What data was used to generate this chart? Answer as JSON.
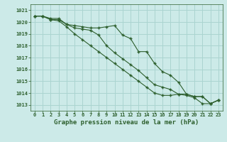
{
  "title": "Graphe pression niveau de la mer (hPa)",
  "bg_color": "#cceae8",
  "grid_color": "#aad4d0",
  "line_color": "#2d5f2d",
  "x_labels": [
    "0",
    "1",
    "2",
    "3",
    "4",
    "5",
    "6",
    "7",
    "8",
    "9",
    "10",
    "11",
    "12",
    "13",
    "14",
    "15",
    "16",
    "17",
    "18",
    "19",
    "20",
    "21",
    "22",
    "23"
  ],
  "ylim": [
    1012.5,
    1021.5
  ],
  "yticks": [
    1013,
    1014,
    1015,
    1016,
    1017,
    1018,
    1019,
    1020,
    1021
  ],
  "series": [
    [
      1020.5,
      1020.5,
      1020.3,
      1020.3,
      1019.8,
      1019.7,
      1019.6,
      1019.5,
      1019.5,
      1019.6,
      1019.7,
      1018.9,
      1018.6,
      1017.5,
      1017.5,
      1016.5,
      1015.8,
      1015.5,
      1014.9,
      1013.9,
      1013.7,
      1013.7,
      1013.1,
      1013.4
    ],
    [
      1020.5,
      1020.5,
      1020.2,
      1020.2,
      1019.8,
      1019.5,
      1019.4,
      1019.3,
      1018.9,
      1018.0,
      1017.4,
      1016.9,
      1016.4,
      1015.9,
      1015.3,
      1014.7,
      1014.5,
      1014.3,
      1013.9,
      1013.9,
      1013.7,
      1013.7,
      1013.1,
      1013.4
    ],
    [
      1020.5,
      1020.5,
      1020.2,
      1020.1,
      1019.6,
      1019.0,
      1018.5,
      1018.0,
      1017.5,
      1017.0,
      1016.5,
      1016.0,
      1015.5,
      1015.0,
      1014.5,
      1014.0,
      1013.8,
      1013.8,
      1013.9,
      1013.8,
      1013.6,
      1013.1,
      1013.1,
      1013.4
    ]
  ]
}
